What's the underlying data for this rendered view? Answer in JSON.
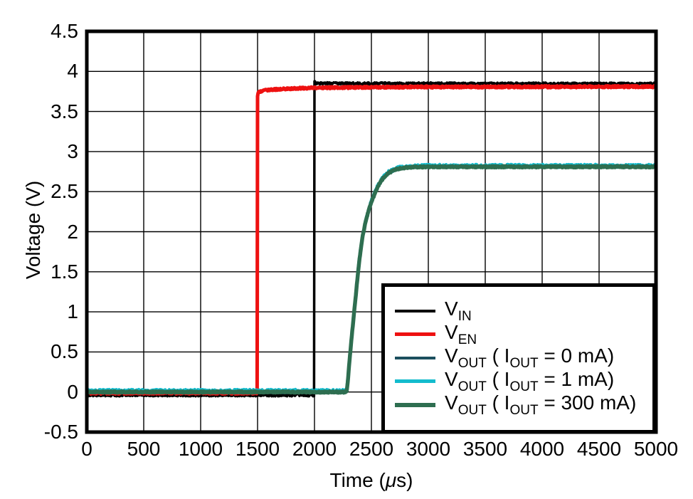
{
  "chart_data": {
    "type": "line",
    "title": "",
    "xlabel": "Time (μs)",
    "xlabel_parts": {
      "pre": "Time (",
      "mu": "μ",
      "post": "s)"
    },
    "ylabel": "Voltage (V)",
    "xlim": [
      0,
      5000
    ],
    "ylim": [
      -0.5,
      4.5
    ],
    "grid": true,
    "axis_color": "#000000",
    "background_color": "#ffffff",
    "x_ticks": {
      "values": [
        0,
        500,
        1000,
        1500,
        2000,
        2500,
        3000,
        3500,
        4000,
        4500,
        5000
      ],
      "labels": [
        "0",
        "500",
        "1000",
        "1500",
        "2000",
        "2500",
        "3000",
        "3500",
        "4000",
        "4500",
        "5000"
      ]
    },
    "y_ticks": {
      "values": [
        -0.5,
        0,
        0.5,
        1,
        1.5,
        2,
        2.5,
        3,
        3.5,
        4,
        4.5
      ],
      "labels": [
        "-0.5",
        "0",
        "0.5",
        "1",
        "1.5",
        "2",
        "2.5",
        "3",
        "3.5",
        "4",
        "4.5"
      ]
    },
    "series": [
      {
        "id": "vin",
        "name": "V_IN",
        "color": "#000000",
        "width": 3.5,
        "noise_v": 0.014,
        "points": [
          [
            0,
            -0.04
          ],
          [
            1996,
            -0.04
          ],
          [
            2000,
            3.89
          ],
          [
            2012,
            3.85
          ],
          [
            5000,
            3.845
          ]
        ]
      },
      {
        "id": "ven",
        "name": "V_EN",
        "color": "#ee1111",
        "width": 5,
        "noise_v": 0.012,
        "points": [
          [
            0,
            -0.012
          ],
          [
            1497,
            -0.012
          ],
          [
            1500,
            3.7
          ],
          [
            1508,
            3.745
          ],
          [
            1560,
            3.765
          ],
          [
            1700,
            3.78
          ],
          [
            1950,
            3.793
          ],
          [
            2300,
            3.8
          ],
          [
            3000,
            3.806
          ],
          [
            5000,
            3.81
          ]
        ]
      },
      {
        "id": "vout0",
        "name": "V_OUT (IOUT = 0 mA)",
        "color": "#1b4f5e",
        "width": 4,
        "noise_v": 0.012,
        "points": [
          [
            0,
            0
          ],
          [
            2283,
            0
          ],
          [
            2293,
            0.14
          ],
          [
            2303,
            0.31
          ],
          [
            2313,
            0.47
          ],
          [
            2323,
            0.63
          ],
          [
            2333,
            0.78
          ],
          [
            2343,
            0.92
          ],
          [
            2353,
            1.06
          ],
          [
            2363,
            1.2
          ],
          [
            2373,
            1.35
          ],
          [
            2383,
            1.5
          ],
          [
            2393,
            1.63
          ],
          [
            2403,
            1.74
          ],
          [
            2413,
            1.85
          ],
          [
            2423,
            1.94
          ],
          [
            2435,
            2.03
          ],
          [
            2450,
            2.13
          ],
          [
            2465,
            2.21
          ],
          [
            2480,
            2.28
          ],
          [
            2500,
            2.37
          ],
          [
            2520,
            2.44
          ],
          [
            2540,
            2.51
          ],
          [
            2560,
            2.57
          ],
          [
            2580,
            2.62
          ],
          [
            2600,
            2.66
          ],
          [
            2630,
            2.71
          ],
          [
            2660,
            2.74
          ],
          [
            2700,
            2.77
          ],
          [
            2750,
            2.79
          ],
          [
            2800,
            2.8
          ],
          [
            2900,
            2.81
          ],
          [
            3000,
            2.813
          ],
          [
            5000,
            2.813
          ]
        ]
      },
      {
        "id": "vout1",
        "name": "V_OUT (IOUT = 1 mA)",
        "color": "#13bccd",
        "width": 4.5,
        "noise_v": 0.02,
        "points": [
          [
            0,
            0.012
          ],
          [
            2283,
            0.012
          ],
          [
            2293,
            0.15
          ],
          [
            2303,
            0.32
          ],
          [
            2313,
            0.48
          ],
          [
            2323,
            0.64
          ],
          [
            2333,
            0.79
          ],
          [
            2343,
            0.93
          ],
          [
            2353,
            1.07
          ],
          [
            2363,
            1.21
          ],
          [
            2373,
            1.36
          ],
          [
            2383,
            1.51
          ],
          [
            2393,
            1.64
          ],
          [
            2403,
            1.75
          ],
          [
            2413,
            1.86
          ],
          [
            2423,
            1.95
          ],
          [
            2435,
            2.04
          ],
          [
            2450,
            2.14
          ],
          [
            2465,
            2.22
          ],
          [
            2480,
            2.29
          ],
          [
            2500,
            2.38
          ],
          [
            2520,
            2.45
          ],
          [
            2540,
            2.52
          ],
          [
            2560,
            2.58
          ],
          [
            2580,
            2.63
          ],
          [
            2600,
            2.67
          ],
          [
            2630,
            2.72
          ],
          [
            2660,
            2.75
          ],
          [
            2700,
            2.78
          ],
          [
            2750,
            2.8
          ],
          [
            2800,
            2.81
          ],
          [
            2900,
            2.817
          ],
          [
            3000,
            2.82
          ],
          [
            5000,
            2.82
          ]
        ]
      },
      {
        "id": "vout300",
        "name": "V_OUT (IOUT = 300 mA)",
        "color": "#2e6e50",
        "width": 5.5,
        "noise_v": 0.009,
        "points": [
          [
            0,
            0
          ],
          [
            2283,
            0
          ],
          [
            2293,
            0.14
          ],
          [
            2303,
            0.31
          ],
          [
            2313,
            0.47
          ],
          [
            2323,
            0.63
          ],
          [
            2333,
            0.78
          ],
          [
            2343,
            0.92
          ],
          [
            2353,
            1.06
          ],
          [
            2363,
            1.2
          ],
          [
            2373,
            1.35
          ],
          [
            2383,
            1.5
          ],
          [
            2393,
            1.63
          ],
          [
            2403,
            1.74
          ],
          [
            2413,
            1.85
          ],
          [
            2423,
            1.94
          ],
          [
            2435,
            2.03
          ],
          [
            2450,
            2.13
          ],
          [
            2465,
            2.21
          ],
          [
            2480,
            2.28
          ],
          [
            2500,
            2.37
          ],
          [
            2520,
            2.44
          ],
          [
            2540,
            2.51
          ],
          [
            2560,
            2.57
          ],
          [
            2580,
            2.62
          ],
          [
            2600,
            2.66
          ],
          [
            2630,
            2.71
          ],
          [
            2660,
            2.74
          ],
          [
            2700,
            2.77
          ],
          [
            2750,
            2.79
          ],
          [
            2800,
            2.8
          ],
          [
            2900,
            2.807
          ],
          [
            3000,
            2.81
          ],
          [
            5000,
            2.81
          ]
        ]
      }
    ],
    "legend": {
      "position": "bottom-right",
      "items": [
        {
          "series_id": "vin",
          "segments": [
            {
              "text": "V"
            },
            {
              "text": "IN",
              "sub": true
            }
          ]
        },
        {
          "series_id": "ven",
          "segments": [
            {
              "text": "V"
            },
            {
              "text": "EN",
              "sub": true
            }
          ]
        },
        {
          "series_id": "vout0",
          "segments": [
            {
              "text": "V"
            },
            {
              "text": "OUT",
              "sub": true
            },
            {
              "text": " ( I"
            },
            {
              "text": "OUT",
              "sub": true
            },
            {
              "text": " = 0 mA)"
            }
          ]
        },
        {
          "series_id": "vout1",
          "segments": [
            {
              "text": "V"
            },
            {
              "text": "OUT",
              "sub": true
            },
            {
              "text": " ( I"
            },
            {
              "text": "OUT",
              "sub": true
            },
            {
              "text": " = 1 mA)"
            }
          ]
        },
        {
          "series_id": "vout300",
          "segments": [
            {
              "text": "V"
            },
            {
              "text": "OUT",
              "sub": true
            },
            {
              "text": " ( I"
            },
            {
              "text": "OUT",
              "sub": true
            },
            {
              "text": " = 300 mA)"
            }
          ]
        }
      ]
    }
  }
}
